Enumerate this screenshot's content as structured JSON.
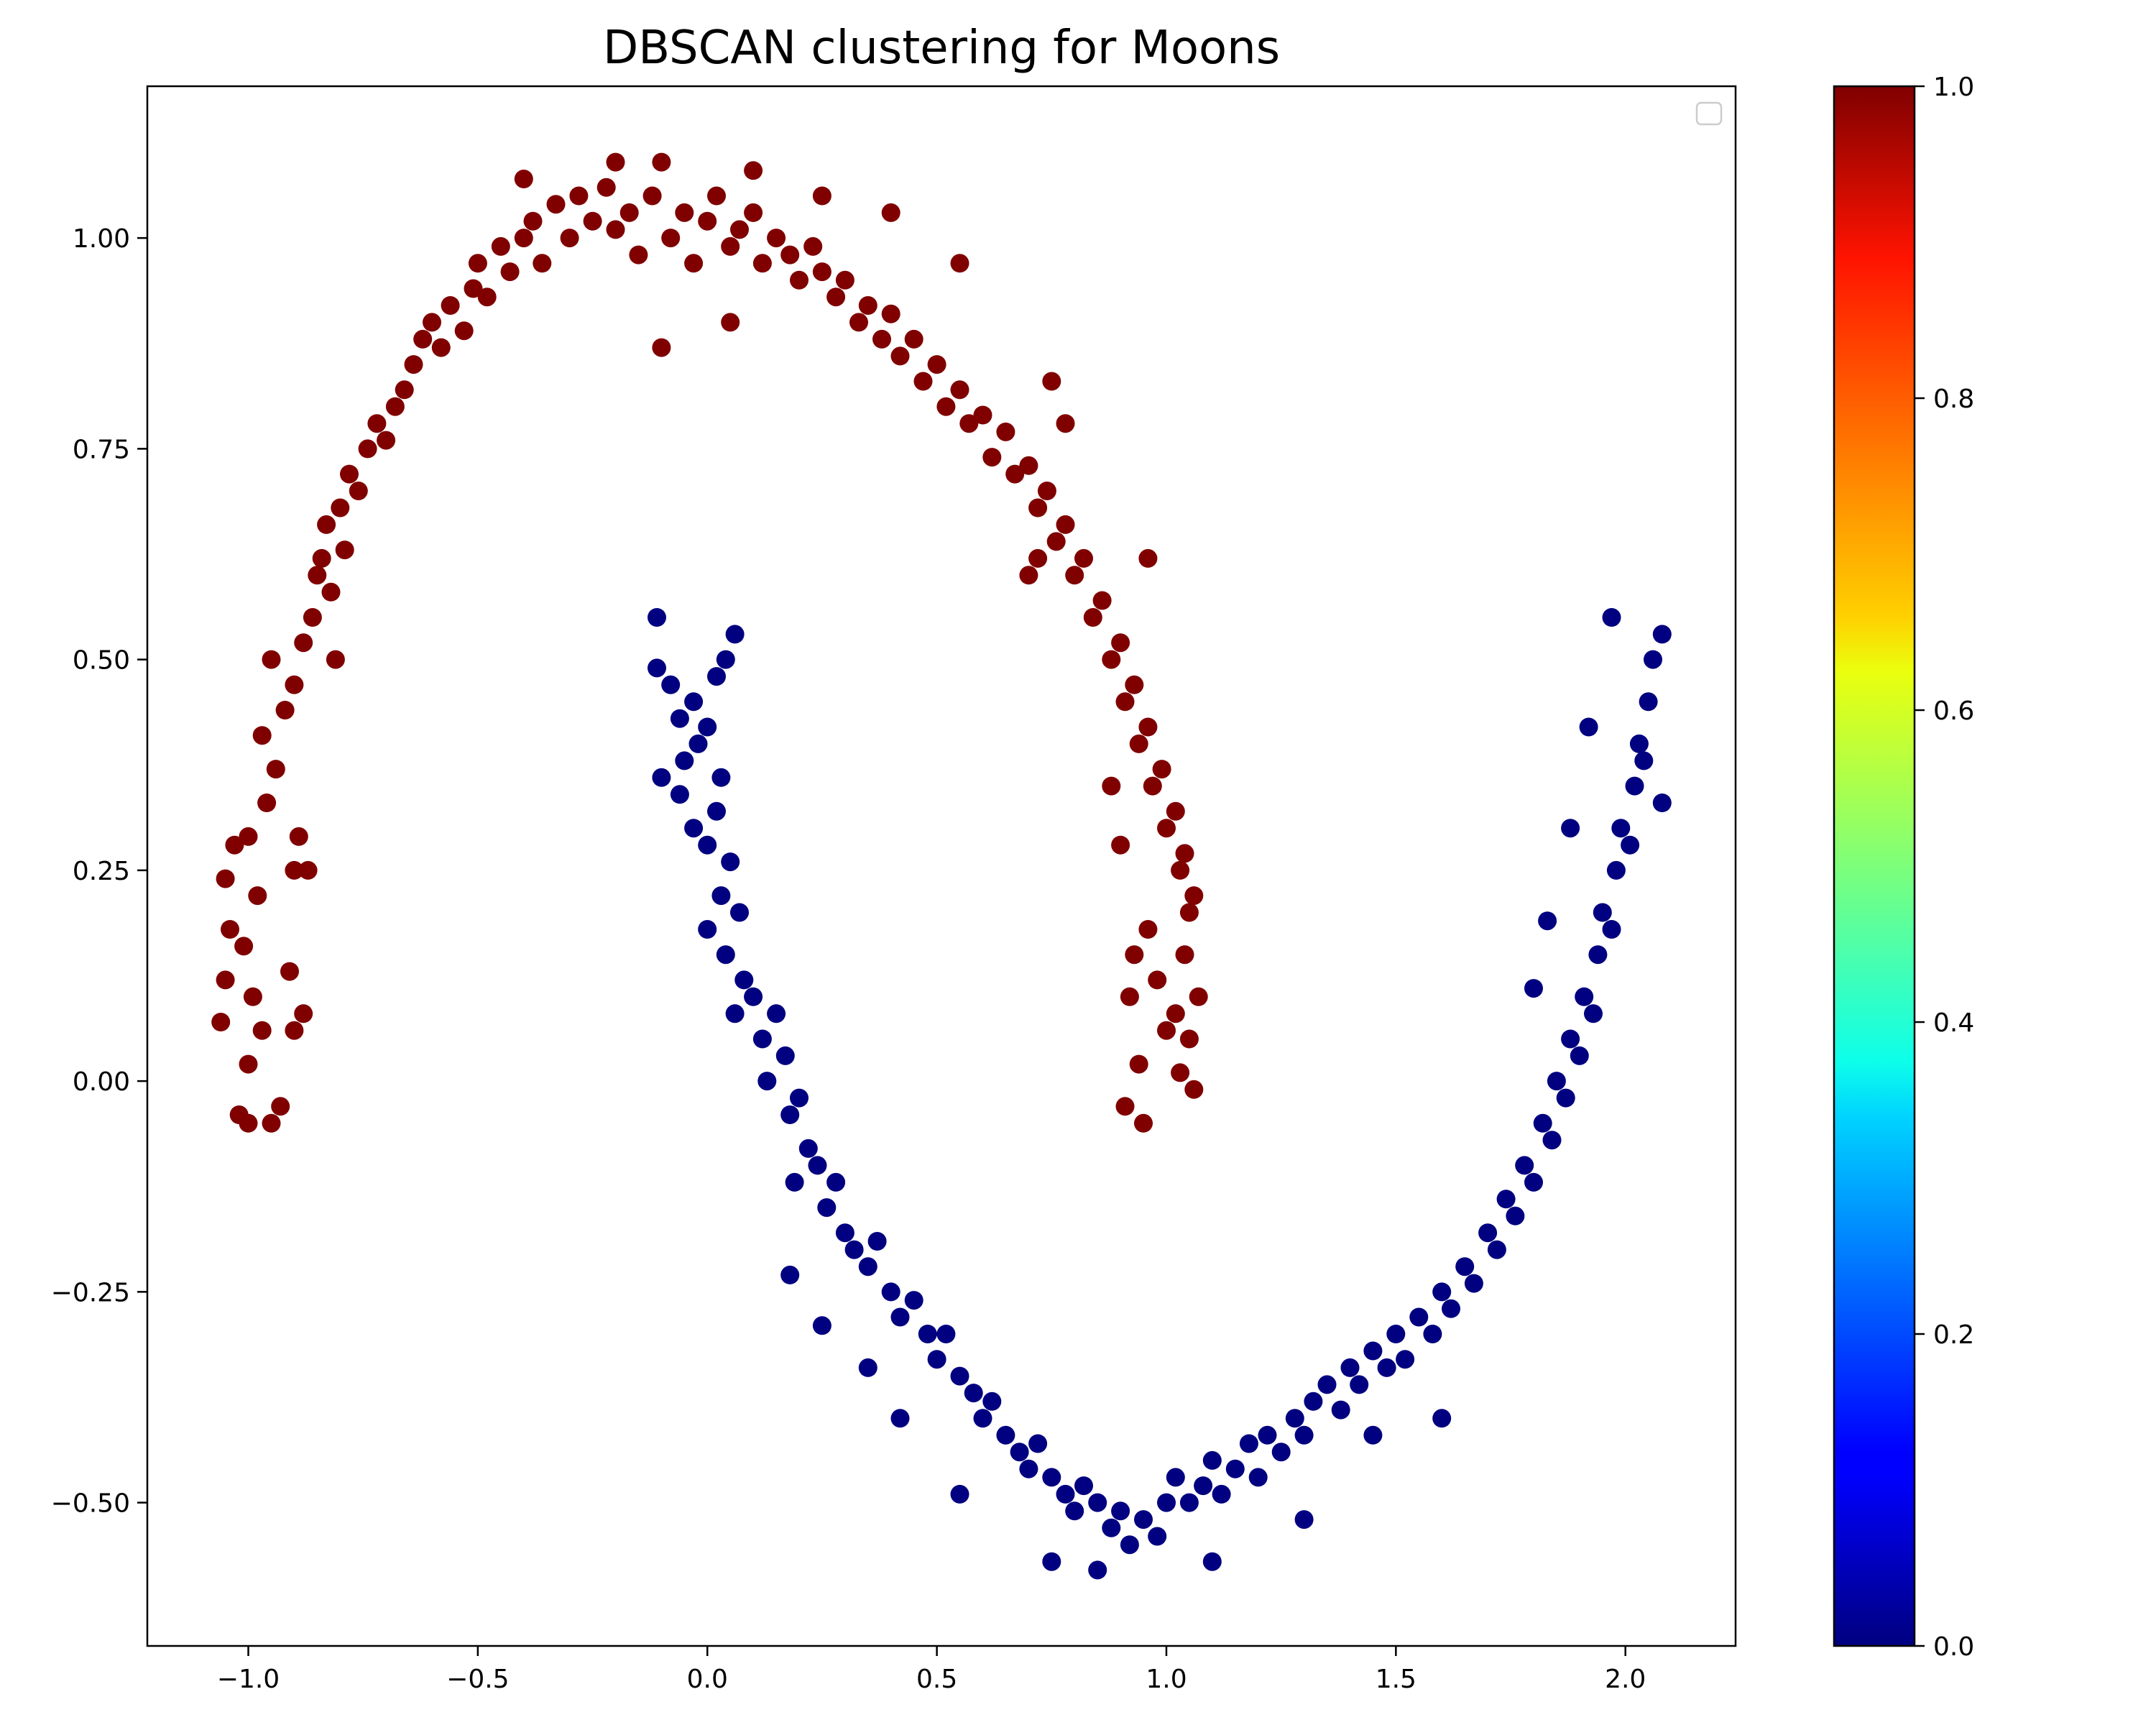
{
  "chart_data": {
    "type": "scatter",
    "title": "DBSCAN clustering for Moons",
    "xlabel": "",
    "ylabel": "",
    "xlim": [
      -1.22,
      2.24
    ],
    "ylim": [
      -0.67,
      1.18
    ],
    "x_ticks": [
      -1.0,
      -0.5,
      0.0,
      0.5,
      1.0,
      1.5,
      2.0
    ],
    "x_tick_labels": [
      "−1.0",
      "−0.5",
      "0.0",
      "0.5",
      "1.0",
      "1.5",
      "2.0"
    ],
    "y_ticks": [
      -0.5,
      -0.25,
      0.0,
      0.25,
      0.5,
      0.75,
      1.0
    ],
    "y_tick_labels": [
      "−0.50",
      "−0.25",
      "0.00",
      "0.25",
      "0.50",
      "0.75",
      "1.00"
    ],
    "grid": false,
    "legend": {
      "placement": "upper-right",
      "entries": []
    },
    "colormap": "jet",
    "colorbar": {
      "range": [
        0.0,
        1.0
      ],
      "ticks": [
        0.0,
        0.2,
        0.4,
        0.6,
        0.8,
        1.0
      ],
      "tick_labels": [
        "0.0",
        "0.2",
        "0.4",
        "0.6",
        "0.8",
        "1.0"
      ]
    },
    "series": [
      {
        "cluster_label": 1,
        "color": "#800000",
        "points": [
          [
            -1.06,
            0.07
          ],
          [
            -1.05,
            0.12
          ],
          [
            -1.04,
            0.18
          ],
          [
            -1.05,
            0.24
          ],
          [
            -1.03,
            0.28
          ],
          [
            -1.0,
            0.02
          ],
          [
            -0.99,
            0.1
          ],
          [
            -1.01,
            0.16
          ],
          [
            -0.98,
            0.22
          ],
          [
            -1.0,
            0.29
          ],
          [
            -1.02,
            -0.04
          ],
          [
            -1.0,
            -0.05
          ],
          [
            -0.95,
            -0.05
          ],
          [
            -0.93,
            -0.03
          ],
          [
            -0.97,
            0.06
          ],
          [
            -0.96,
            0.33
          ],
          [
            -0.94,
            0.37
          ],
          [
            -0.97,
            0.41
          ],
          [
            -0.92,
            0.44
          ],
          [
            -0.95,
            0.5
          ],
          [
            -0.9,
            0.25
          ],
          [
            -0.91,
            0.13
          ],
          [
            -0.9,
            0.06
          ],
          [
            -0.88,
            0.08
          ],
          [
            -0.89,
            0.29
          ],
          [
            -0.87,
            0.25
          ],
          [
            -0.9,
            0.47
          ],
          [
            -0.88,
            0.52
          ],
          [
            -0.86,
            0.55
          ],
          [
            -0.85,
            0.6
          ],
          [
            -0.84,
            0.62
          ],
          [
            -0.82,
            0.58
          ],
          [
            -0.81,
            0.5
          ],
          [
            -0.83,
            0.66
          ],
          [
            -0.8,
            0.68
          ],
          [
            -0.79,
            0.63
          ],
          [
            -0.78,
            0.72
          ],
          [
            -0.76,
            0.7
          ],
          [
            -0.74,
            0.75
          ],
          [
            -0.72,
            0.78
          ],
          [
            -0.7,
            0.76
          ],
          [
            -0.68,
            0.8
          ],
          [
            -0.66,
            0.82
          ],
          [
            -0.64,
            0.85
          ],
          [
            -0.62,
            0.88
          ],
          [
            -0.6,
            0.9
          ],
          [
            -0.58,
            0.87
          ],
          [
            -0.56,
            0.92
          ],
          [
            -0.53,
            0.89
          ],
          [
            -0.51,
            0.94
          ],
          [
            -0.5,
            0.97
          ],
          [
            -0.48,
            0.93
          ],
          [
            -0.45,
            0.99
          ],
          [
            -0.43,
            0.96
          ],
          [
            -0.4,
            1.0
          ],
          [
            -0.38,
            1.02
          ],
          [
            -0.36,
            0.97
          ],
          [
            -0.33,
            1.04
          ],
          [
            -0.3,
            1.0
          ],
          [
            -0.28,
            1.05
          ],
          [
            -0.25,
            1.02
          ],
          [
            -0.22,
            1.06
          ],
          [
            -0.2,
            1.01
          ],
          [
            -0.17,
            1.03
          ],
          [
            -0.15,
            0.98
          ],
          [
            -0.12,
            1.05
          ],
          [
            -0.1,
            1.09
          ],
          [
            -0.08,
            1.0
          ],
          [
            -0.05,
            1.03
          ],
          [
            -0.03,
            0.97
          ],
          [
            0.0,
            1.02
          ],
          [
            0.02,
            1.05
          ],
          [
            0.05,
            0.99
          ],
          [
            0.07,
            1.01
          ],
          [
            0.1,
            1.03
          ],
          [
            0.12,
            0.97
          ],
          [
            0.15,
            1.0
          ],
          [
            0.18,
            0.98
          ],
          [
            0.2,
            0.95
          ],
          [
            0.23,
            0.99
          ],
          [
            0.25,
            0.96
          ],
          [
            0.28,
            0.93
          ],
          [
            0.3,
            0.95
          ],
          [
            0.33,
            0.9
          ],
          [
            0.35,
            0.92
          ],
          [
            0.38,
            0.88
          ],
          [
            0.4,
            0.91
          ],
          [
            0.42,
            0.86
          ],
          [
            0.45,
            0.88
          ],
          [
            0.47,
            0.83
          ],
          [
            0.5,
            0.85
          ],
          [
            0.52,
            0.8
          ],
          [
            0.55,
            0.82
          ],
          [
            0.57,
            0.78
          ],
          [
            0.6,
            0.79
          ],
          [
            0.62,
            0.74
          ],
          [
            0.65,
            0.77
          ],
          [
            0.67,
            0.72
          ],
          [
            0.7,
            0.73
          ],
          [
            0.72,
            0.68
          ],
          [
            0.74,
            0.7
          ],
          [
            0.76,
            0.64
          ],
          [
            0.78,
            0.66
          ],
          [
            0.8,
            0.6
          ],
          [
            0.82,
            0.62
          ],
          [
            0.84,
            0.55
          ],
          [
            0.86,
            0.57
          ],
          [
            0.88,
            0.5
          ],
          [
            0.9,
            0.52
          ],
          [
            0.91,
            0.45
          ],
          [
            0.93,
            0.47
          ],
          [
            0.94,
            0.4
          ],
          [
            0.96,
            0.42
          ],
          [
            0.97,
            0.35
          ],
          [
            0.99,
            0.37
          ],
          [
            1.0,
            0.3
          ],
          [
            1.02,
            0.32
          ],
          [
            1.03,
            0.25
          ],
          [
            1.04,
            0.27
          ],
          [
            1.05,
            0.2
          ],
          [
            1.06,
            0.22
          ],
          [
            1.04,
            0.15
          ],
          [
            1.07,
            0.1
          ],
          [
            1.02,
            0.08
          ],
          [
            1.05,
            0.05
          ],
          [
            1.03,
            0.01
          ],
          [
            1.06,
            -0.01
          ],
          [
            1.0,
            0.06
          ],
          [
            0.98,
            0.12
          ],
          [
            0.96,
            0.18
          ],
          [
            0.94,
            0.02
          ],
          [
            0.92,
            0.1
          ],
          [
            0.95,
            -0.05
          ],
          [
            0.91,
            -0.03
          ],
          [
            0.93,
            0.15
          ],
          [
            0.9,
            0.28
          ],
          [
            0.88,
            0.35
          ],
          [
            0.96,
            0.62
          ],
          [
            0.72,
            0.62
          ],
          [
            0.7,
            0.6
          ],
          [
            -0.1,
            0.87
          ],
          [
            0.05,
            0.9
          ],
          [
            0.1,
            1.08
          ],
          [
            0.25,
            1.05
          ],
          [
            0.4,
            1.03
          ],
          [
            -0.4,
            1.07
          ],
          [
            -0.2,
            1.09
          ],
          [
            0.55,
            0.97
          ],
          [
            0.75,
            0.83
          ],
          [
            0.78,
            0.78
          ]
        ]
      },
      {
        "cluster_label": 0,
        "color": "#000080",
        "points": [
          [
            -0.11,
            0.55
          ],
          [
            -0.11,
            0.49
          ],
          [
            -0.08,
            0.47
          ],
          [
            -0.06,
            0.43
          ],
          [
            -0.03,
            0.45
          ],
          [
            -0.05,
            0.38
          ],
          [
            -0.02,
            0.4
          ],
          [
            0.0,
            0.42
          ],
          [
            0.02,
            0.48
          ],
          [
            0.04,
            0.5
          ],
          [
            0.06,
            0.53
          ],
          [
            0.03,
            0.36
          ],
          [
            -0.1,
            0.36
          ],
          [
            -0.06,
            0.34
          ],
          [
            -0.03,
            0.3
          ],
          [
            0.0,
            0.28
          ],
          [
            0.02,
            0.32
          ],
          [
            0.05,
            0.26
          ],
          [
            0.03,
            0.22
          ],
          [
            0.07,
            0.2
          ],
          [
            0.0,
            0.18
          ],
          [
            0.04,
            0.15
          ],
          [
            0.08,
            0.12
          ],
          [
            0.06,
            0.08
          ],
          [
            0.1,
            0.1
          ],
          [
            0.12,
            0.05
          ],
          [
            0.15,
            0.08
          ],
          [
            0.13,
            0.0
          ],
          [
            0.17,
            0.03
          ],
          [
            0.18,
            -0.04
          ],
          [
            0.2,
            -0.02
          ],
          [
            0.22,
            -0.08
          ],
          [
            0.19,
            -0.12
          ],
          [
            0.24,
            -0.1
          ],
          [
            0.26,
            -0.15
          ],
          [
            0.28,
            -0.12
          ],
          [
            0.3,
            -0.18
          ],
          [
            0.32,
            -0.2
          ],
          [
            0.35,
            -0.22
          ],
          [
            0.37,
            -0.19
          ],
          [
            0.4,
            -0.25
          ],
          [
            0.42,
            -0.28
          ],
          [
            0.45,
            -0.26
          ],
          [
            0.48,
            -0.3
          ],
          [
            0.5,
            -0.33
          ],
          [
            0.52,
            -0.3
          ],
          [
            0.55,
            -0.35
          ],
          [
            0.58,
            -0.37
          ],
          [
            0.6,
            -0.4
          ],
          [
            0.62,
            -0.38
          ],
          [
            0.65,
            -0.42
          ],
          [
            0.68,
            -0.44
          ],
          [
            0.7,
            -0.46
          ],
          [
            0.72,
            -0.43
          ],
          [
            0.75,
            -0.47
          ],
          [
            0.78,
            -0.49
          ],
          [
            0.8,
            -0.51
          ],
          [
            0.82,
            -0.48
          ],
          [
            0.85,
            -0.5
          ],
          [
            0.88,
            -0.53
          ],
          [
            0.9,
            -0.51
          ],
          [
            0.92,
            -0.55
          ],
          [
            0.95,
            -0.52
          ],
          [
            0.98,
            -0.54
          ],
          [
            1.0,
            -0.5
          ],
          [
            1.02,
            -0.47
          ],
          [
            1.05,
            -0.5
          ],
          [
            1.08,
            -0.48
          ],
          [
            1.1,
            -0.45
          ],
          [
            1.12,
            -0.49
          ],
          [
            1.15,
            -0.46
          ],
          [
            1.18,
            -0.43
          ],
          [
            1.2,
            -0.47
          ],
          [
            1.22,
            -0.42
          ],
          [
            1.25,
            -0.44
          ],
          [
            1.28,
            -0.4
          ],
          [
            1.3,
            -0.42
          ],
          [
            1.32,
            -0.38
          ],
          [
            1.35,
            -0.36
          ],
          [
            1.38,
            -0.39
          ],
          [
            1.4,
            -0.34
          ],
          [
            1.42,
            -0.36
          ],
          [
            1.45,
            -0.32
          ],
          [
            1.48,
            -0.34
          ],
          [
            1.5,
            -0.3
          ],
          [
            1.52,
            -0.33
          ],
          [
            1.55,
            -0.28
          ],
          [
            1.58,
            -0.3
          ],
          [
            1.6,
            -0.25
          ],
          [
            1.62,
            -0.27
          ],
          [
            1.65,
            -0.22
          ],
          [
            1.67,
            -0.24
          ],
          [
            1.7,
            -0.18
          ],
          [
            1.72,
            -0.2
          ],
          [
            1.74,
            -0.14
          ],
          [
            1.76,
            -0.16
          ],
          [
            1.78,
            -0.1
          ],
          [
            1.8,
            -0.12
          ],
          [
            1.82,
            -0.05
          ],
          [
            1.84,
            -0.07
          ],
          [
            1.85,
            0.0
          ],
          [
            1.87,
            -0.02
          ],
          [
            1.88,
            0.05
          ],
          [
            1.9,
            0.03
          ],
          [
            1.91,
            0.1
          ],
          [
            1.93,
            0.08
          ],
          [
            1.94,
            0.15
          ],
          [
            1.95,
            0.2
          ],
          [
            1.97,
            0.18
          ],
          [
            1.98,
            0.25
          ],
          [
            1.99,
            0.3
          ],
          [
            2.01,
            0.28
          ],
          [
            2.02,
            0.35
          ],
          [
            2.03,
            0.4
          ],
          [
            2.04,
            0.38
          ],
          [
            2.05,
            0.45
          ],
          [
            2.06,
            0.5
          ],
          [
            2.08,
            0.53
          ],
          [
            2.08,
            0.33
          ],
          [
            1.97,
            0.55
          ],
          [
            1.92,
            0.42
          ],
          [
            1.88,
            0.3
          ],
          [
            1.83,
            0.19
          ],
          [
            1.8,
            0.11
          ],
          [
            1.6,
            -0.4
          ],
          [
            1.45,
            -0.42
          ],
          [
            1.3,
            -0.52
          ],
          [
            1.1,
            -0.57
          ],
          [
            0.85,
            -0.58
          ],
          [
            0.75,
            -0.57
          ],
          [
            0.55,
            -0.49
          ],
          [
            0.42,
            -0.4
          ],
          [
            0.35,
            -0.34
          ],
          [
            0.25,
            -0.29
          ],
          [
            0.18,
            -0.23
          ]
        ]
      }
    ]
  }
}
